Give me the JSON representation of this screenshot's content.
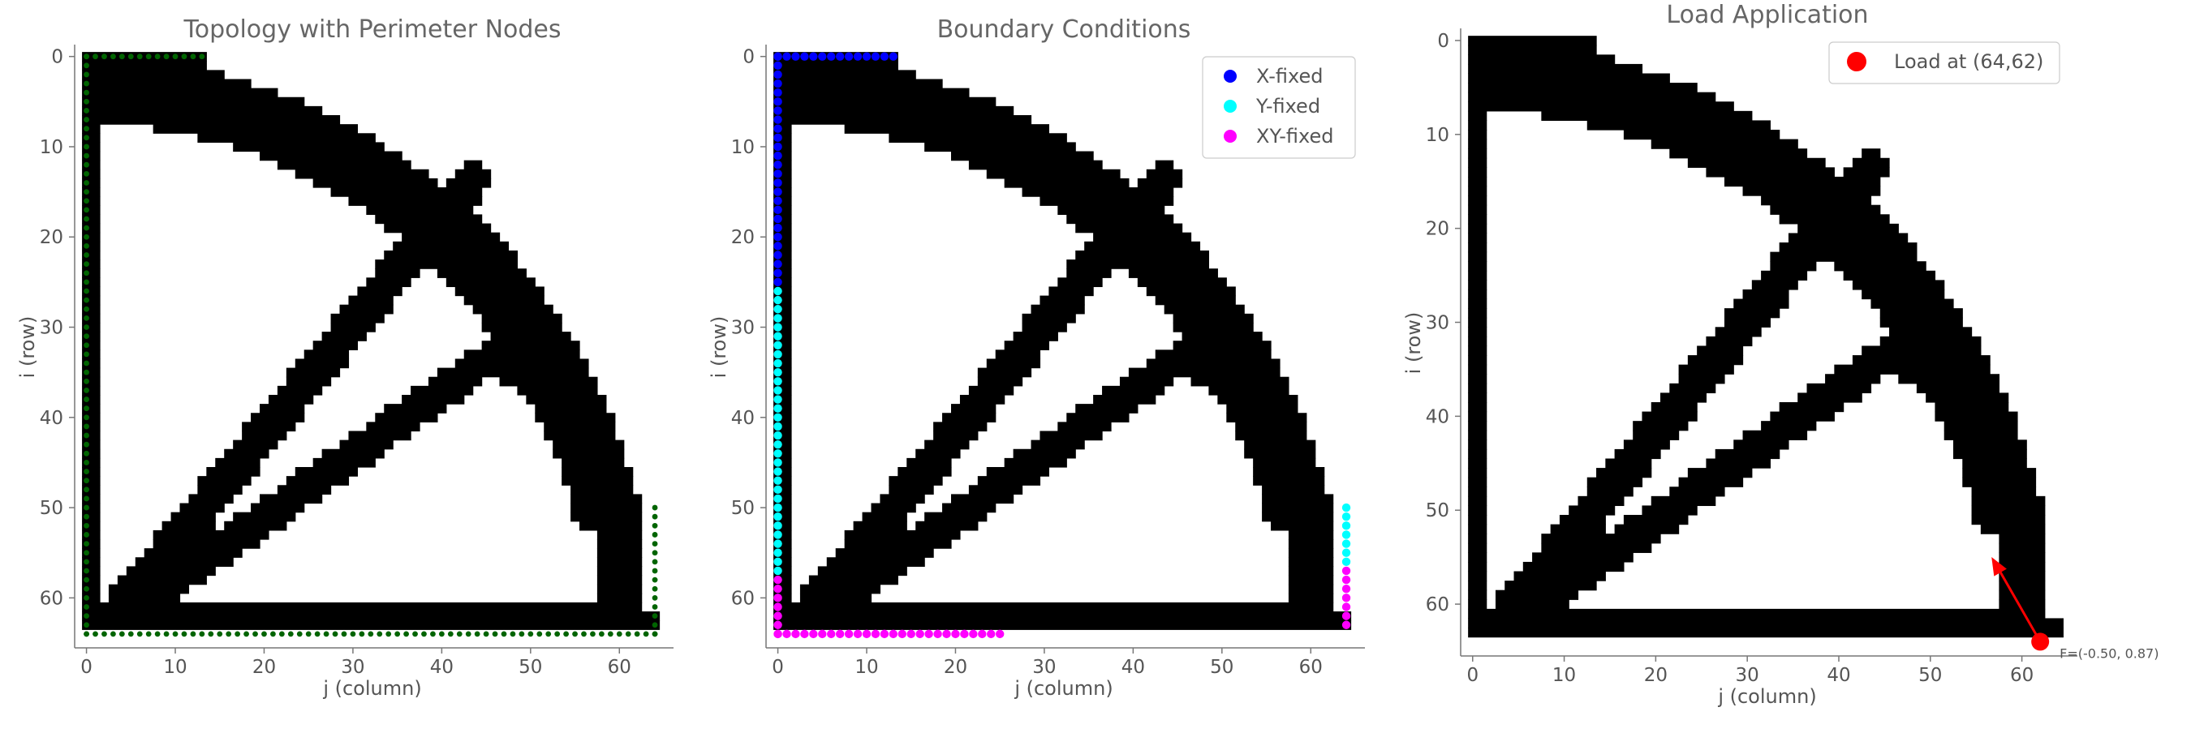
{
  "colors": {
    "structure": "#000000",
    "background": "#ffffff",
    "perimeter_nodes": "#006400",
    "x_fixed": "#0000ff",
    "y_fixed": "#00ffff",
    "xy_fixed": "#ff00ff",
    "load": "#ff0000",
    "spine": "#777777",
    "text": "#555555"
  },
  "chart_data": [
    {
      "type": "heatmap",
      "title": "Topology with Perimeter Nodes",
      "xlabel": "j (column)",
      "ylabel": "i (row)",
      "xlim": [
        0,
        64
      ],
      "ylim": [
        64,
        0
      ],
      "xticks": [
        0,
        10,
        20,
        30,
        40,
        50,
        60
      ],
      "yticks": [
        0,
        10,
        20,
        30,
        40,
        50,
        60
      ],
      "grid": false,
      "overlay": "perimeter-nodes",
      "perimeter_nodes": {
        "top_row": {
          "i": 0,
          "j_from": 0,
          "j_to": 13
        },
        "left_column": {
          "j": 0,
          "i_from": 0,
          "i_to": 64
        },
        "bottom_row": {
          "i": 64,
          "j_from": 0,
          "j_to": 64
        },
        "right_column": {
          "j": 64,
          "i_from": 50,
          "i_to": 64
        }
      }
    },
    {
      "type": "heatmap",
      "title": "Boundary Conditions",
      "xlabel": "j (column)",
      "ylabel": "i (row)",
      "xlim": [
        0,
        64
      ],
      "ylim": [
        64,
        0
      ],
      "xticks": [
        0,
        10,
        20,
        30,
        40,
        50,
        60
      ],
      "yticks": [
        0,
        10,
        20,
        30,
        40,
        50,
        60
      ],
      "grid": false,
      "legend": {
        "position": "top-right",
        "entries": [
          "X-fixed",
          "Y-fixed",
          "XY-fixed"
        ]
      },
      "boundary_conditions": {
        "x_fixed": [
          {
            "i": 0,
            "j_from": 0,
            "j_to": 13
          },
          {
            "j": 0,
            "i_from": 0,
            "i_to": 25
          }
        ],
        "y_fixed": [
          {
            "j": 0,
            "i_from": 26,
            "i_to": 57
          },
          {
            "j": 64,
            "i_from": 50,
            "i_to": 56
          }
        ],
        "xy_fixed": [
          {
            "j": 0,
            "i_from": 58,
            "i_to": 64
          },
          {
            "i": 64,
            "j_from": 0,
            "j_to": 25
          },
          {
            "j": 64,
            "i_from": 57,
            "i_to": 63
          }
        ]
      }
    },
    {
      "type": "heatmap",
      "title": "Load Application",
      "xlabel": "j (column)",
      "ylabel": "i (row)",
      "xlim": [
        0,
        64
      ],
      "ylim": [
        64,
        0
      ],
      "xticks": [
        0,
        10,
        20,
        30,
        40,
        50,
        60
      ],
      "yticks": [
        0,
        10,
        20,
        30,
        40,
        50,
        60
      ],
      "grid": false,
      "legend": {
        "position": "top-right",
        "entries": [
          "Load at (64,62)"
        ]
      },
      "load": {
        "point_i": 64,
        "point_j": 62,
        "force": [
          -0.5,
          0.87
        ],
        "label": "F=(-0.50, 0.87)"
      }
    }
  ]
}
